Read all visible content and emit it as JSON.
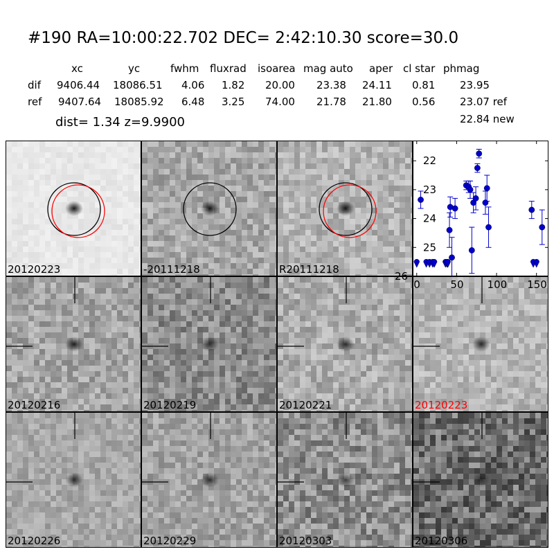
{
  "header": {
    "title": "#190   RA=10:00:22.702 DEC= 2:42:10.30       score=30.0",
    "columns": [
      "xc",
      "yc",
      "fwhm",
      "fluxrad",
      "isoarea",
      "mag auto",
      "aper",
      "cl star",
      "phmag"
    ],
    "rows": [
      {
        "label": "dif",
        "values": [
          "9406.44",
          "18086.51",
          "4.06",
          "1.82",
          "20.00",
          "23.38",
          "24.11",
          "0.81",
          "23.95"
        ]
      },
      {
        "label": "ref",
        "values": [
          "9407.64",
          "18085.92",
          "6.48",
          "3.25",
          "74.00",
          "21.78",
          "21.80",
          "0.56",
          "23.07 ref"
        ]
      }
    ],
    "phmag_new": "22.84 new",
    "dist_line": "dist=  1.34       z=9.9900"
  },
  "panels": [
    {
      "label": "20120223",
      "label_color": "#000000",
      "background": "#e8e8e8",
      "noise": 0.15,
      "blob": 0.9,
      "circles": [
        "#000000",
        "#ff0000"
      ],
      "crosshair": false
    },
    {
      "label": "-20111218",
      "label_color": "#000000",
      "background": "#a8a8a8",
      "noise": 0.55,
      "blob": 0.9,
      "circles": [
        "#000000"
      ],
      "crosshair": false
    },
    {
      "label": "R20111218",
      "label_color": "#000000",
      "background": "#b4b4b4",
      "noise": 0.5,
      "blob": 0.9,
      "circles": [
        "#000000",
        "#ff0000"
      ],
      "crosshair": false
    },
    {
      "label": "20120216",
      "label_color": "#000000",
      "background": "#a4a4a4",
      "noise": 0.55,
      "blob": 0.85,
      "circles": [],
      "crosshair": true
    },
    {
      "label": "20120219",
      "label_color": "#000000",
      "background": "#8c8c8c",
      "noise": 0.65,
      "blob": 0.7,
      "circles": [],
      "crosshair": true
    },
    {
      "label": "20120221",
      "label_color": "#000000",
      "background": "#acacac",
      "noise": 0.55,
      "blob": 0.75,
      "circles": [],
      "crosshair": true
    },
    {
      "label": "20120223",
      "label_color": "#ff0000",
      "background": "#b6b6b6",
      "noise": 0.45,
      "blob": 0.8,
      "circles": [],
      "crosshair": true
    },
    {
      "label": "20120226",
      "label_color": "#000000",
      "background": "#a8a8a8",
      "noise": 0.4,
      "blob": 0.75,
      "circles": [],
      "crosshair": true
    },
    {
      "label": "20120229",
      "label_color": "#000000",
      "background": "#a2a2a2",
      "noise": 0.5,
      "blob": 0.75,
      "circles": [],
      "crosshair": true
    },
    {
      "label": "20120303",
      "label_color": "#000000",
      "background": "#8e8e8e",
      "noise": 0.75,
      "blob": 0.6,
      "circles": [],
      "crosshair": true
    },
    {
      "label": "20120306",
      "label_color": "#000000",
      "background": "#6e6e6e",
      "noise": 0.9,
      "blob": 0.5,
      "circles": [],
      "crosshair": true
    }
  ],
  "chart_data": {
    "type": "scatter",
    "title": "",
    "xlabel": "",
    "ylabel": "",
    "xlim": [
      -5,
      165
    ],
    "ylim": [
      26,
      21.3
    ],
    "xticks": [
      0,
      50,
      100,
      150
    ],
    "yticks": [
      22,
      23,
      24,
      25,
      26
    ],
    "color": "#0000cc",
    "points": [
      {
        "x": 0,
        "y": 25.55,
        "err": 0,
        "upper_limit": true
      },
      {
        "x": 5,
        "y": 23.35,
        "err": 0.3,
        "upper_limit": false
      },
      {
        "x": 12,
        "y": 25.55,
        "err": 0,
        "upper_limit": true
      },
      {
        "x": 16,
        "y": 25.55,
        "err": 0,
        "upper_limit": true
      },
      {
        "x": 20,
        "y": 25.55,
        "err": 0,
        "upper_limit": true
      },
      {
        "x": 22,
        "y": 25.55,
        "err": 0,
        "upper_limit": true
      },
      {
        "x": 36,
        "y": 25.55,
        "err": 0,
        "upper_limit": true
      },
      {
        "x": 38,
        "y": 25.55,
        "err": 0,
        "upper_limit": true
      },
      {
        "x": 39,
        "y": 25.55,
        "err": 0,
        "upper_limit": true
      },
      {
        "x": 41,
        "y": 24.4,
        "err": 0.6,
        "upper_limit": false
      },
      {
        "x": 42,
        "y": 23.6,
        "err": 0.35,
        "upper_limit": false
      },
      {
        "x": 44,
        "y": 25.35,
        "err": 0.7,
        "upper_limit": false
      },
      {
        "x": 48,
        "y": 23.65,
        "err": 0.35,
        "upper_limit": false
      },
      {
        "x": 62,
        "y": 22.85,
        "err": 0.15,
        "upper_limit": false
      },
      {
        "x": 65,
        "y": 22.9,
        "err": 0.2,
        "upper_limit": false
      },
      {
        "x": 67,
        "y": 23.0,
        "err": 0.3,
        "upper_limit": false
      },
      {
        "x": 69,
        "y": 25.1,
        "err": 0.8,
        "upper_limit": false
      },
      {
        "x": 71,
        "y": 23.45,
        "err": 0.35,
        "upper_limit": false
      },
      {
        "x": 74,
        "y": 23.3,
        "err": 0.4,
        "upper_limit": false
      },
      {
        "x": 76,
        "y": 22.25,
        "err": 0.15,
        "upper_limit": false
      },
      {
        "x": 78,
        "y": 21.75,
        "err": 0.15,
        "upper_limit": false
      },
      {
        "x": 86,
        "y": 23.45,
        "err": 0.4,
        "upper_limit": false
      },
      {
        "x": 88,
        "y": 22.95,
        "err": 0.45,
        "upper_limit": false
      },
      {
        "x": 90,
        "y": 24.3,
        "err": 0.7,
        "upper_limit": false
      },
      {
        "x": 144,
        "y": 23.7,
        "err": 0.3,
        "upper_limit": false
      },
      {
        "x": 146,
        "y": 25.55,
        "err": 0,
        "upper_limit": true
      },
      {
        "x": 150,
        "y": 25.55,
        "err": 0,
        "upper_limit": true
      },
      {
        "x": 157,
        "y": 24.3,
        "err": 0.6,
        "upper_limit": false
      }
    ]
  }
}
